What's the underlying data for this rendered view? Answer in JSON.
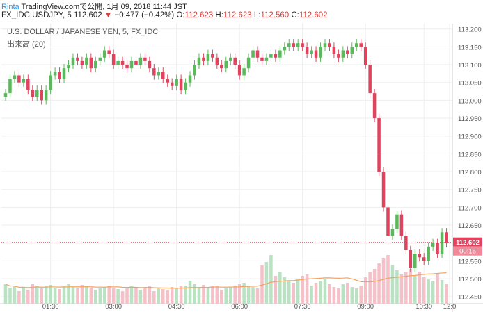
{
  "header": {
    "author": "Rinta",
    "published_text": "TradingView.comで公開, 1月 09, 2018 11:44 JST",
    "symbol": "FX_IDC:USDJPY, 5",
    "last_price": "112.602",
    "change_arrow": "▼",
    "change": "−0.477 (−0.42%)",
    "ohlc": {
      "o_label": "O:",
      "o": "112.623",
      "h_label": "H:",
      "h": "112.623",
      "l_label": "L:",
      "l": "112.560",
      "c_label": "C:",
      "c": "112.602"
    }
  },
  "chart_data": {
    "type": "candlestick",
    "title": "U.S. DOLLAR / JAPANESE YEN, 5, FX_IDC",
    "volume_label": "出来高 (20)",
    "x_ticks": [
      "01:30",
      "03:00",
      "04:30",
      "06:00",
      "07:30",
      "09:00",
      "10:30",
      "12:0"
    ],
    "y_ticks": [
      "113.200",
      "113.150",
      "113.100",
      "113.050",
      "113.000",
      "112.950",
      "112.900",
      "112.850",
      "112.800",
      "112.750",
      "112.700",
      "112.650",
      "112.600",
      "112.550",
      "112.500",
      "112.450"
    ],
    "ylim": [
      112.43,
      113.215
    ],
    "price_label": "112.602",
    "countdown_label": "00:15",
    "colors": {
      "up": "#5cb85c",
      "down": "#e0435e",
      "up_vol": "#b8e2c2",
      "down_vol": "#f5c0c7",
      "ma": "#f4a460",
      "price_line": "#e0435e",
      "grid": "#eeeeee"
    },
    "closes": [
      113.02,
      113.06,
      113.07,
      113.05,
      113.06,
      113.03,
      113.01,
      113.03,
      113.0,
      113.03,
      113.07,
      113.08,
      113.06,
      113.09,
      113.1,
      113.12,
      113.11,
      113.1,
      113.12,
      113.09,
      113.11,
      113.12,
      113.14,
      113.13,
      113.1,
      113.11,
      113.1,
      113.09,
      113.11,
      113.1,
      113.12,
      113.11,
      113.09,
      113.07,
      113.08,
      113.06,
      113.05,
      113.04,
      113.06,
      113.03,
      113.05,
      113.07,
      113.1,
      113.12,
      113.11,
      113.13,
      113.12,
      113.1,
      113.09,
      113.11,
      113.12,
      113.1,
      113.07,
      113.09,
      113.12,
      113.14,
      113.12,
      113.11,
      113.12,
      113.13,
      113.12,
      113.14,
      113.15,
      113.16,
      113.15,
      113.16,
      113.15,
      113.13,
      113.14,
      113.12,
      113.15,
      113.16,
      113.15,
      113.13,
      113.12,
      113.14,
      113.13,
      113.15,
      113.16,
      113.15,
      113.1,
      113.02,
      112.95,
      112.8,
      112.7,
      112.62,
      112.64,
      112.68,
      112.62,
      112.58,
      112.53,
      112.57,
      112.56,
      112.55,
      112.59,
      112.6,
      112.57,
      112.63,
      112.6
    ],
    "volumes": [
      28,
      23,
      25,
      18,
      24,
      20,
      28,
      26,
      22,
      25,
      27,
      23,
      21,
      26,
      28,
      24,
      22,
      27,
      25,
      23,
      20,
      22,
      24,
      26,
      23,
      21,
      18,
      22,
      25,
      23,
      20,
      24,
      26,
      18,
      23,
      21,
      19,
      24,
      22,
      25,
      26,
      33,
      28,
      24,
      27,
      22,
      25,
      26,
      20,
      22,
      24,
      26,
      28,
      30,
      26,
      24,
      22,
      55,
      60,
      70,
      40,
      45,
      38,
      33,
      30,
      36,
      40,
      42,
      26,
      30,
      32,
      35,
      28,
      24,
      22,
      28,
      30,
      24,
      22,
      26,
      38,
      45,
      50,
      58,
      65,
      70,
      55,
      48,
      42,
      45,
      50,
      40,
      46,
      38,
      35,
      32,
      42,
      34,
      28
    ],
    "vol_max": 100
  }
}
